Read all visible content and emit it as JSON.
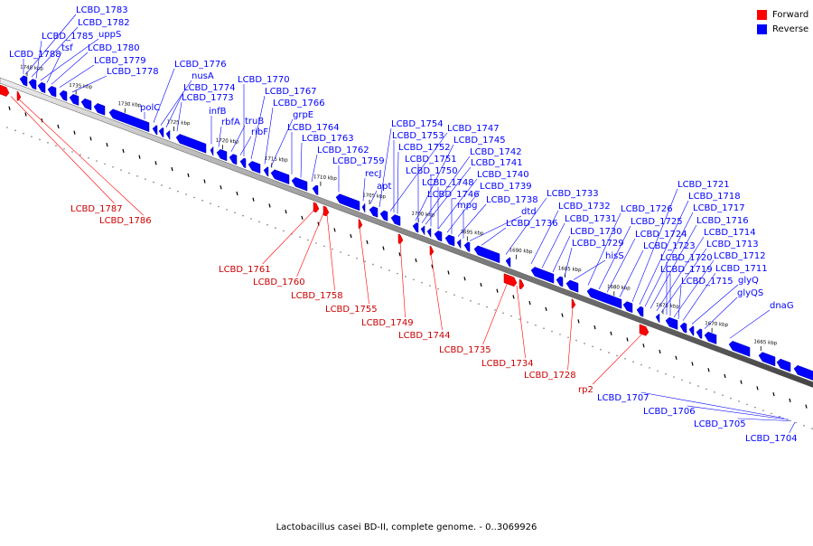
{
  "caption": "Lactobacillus casei BD-II, complete genome. - 0..3069926",
  "colors": {
    "forward": "#ff0000",
    "reverse": "#0000ff",
    "backbone": "#666666"
  },
  "legend": [
    {
      "label": "Forward",
      "color": "#ff0000",
      "icon": "red-square-icon"
    },
    {
      "label": "Reverse",
      "color": "#0000ff",
      "icon": "blue-square-icon"
    }
  ],
  "scale_ticks": [
    {
      "label": "1740 kbp",
      "kbp": 1740
    },
    {
      "label": "1735 kbp",
      "kbp": 1735
    },
    {
      "label": "1730 kbp",
      "kbp": 1730
    },
    {
      "label": "1725 kbp",
      "kbp": 1725
    },
    {
      "label": "1720 kbp",
      "kbp": 1720
    },
    {
      "label": "1715 kbp",
      "kbp": 1715
    },
    {
      "label": "1710 kbp",
      "kbp": 1710
    },
    {
      "label": "1705 kbp",
      "kbp": 1705
    },
    {
      "label": "1700 kbp",
      "kbp": 1700
    },
    {
      "label": "1695 kbp",
      "kbp": 1695
    },
    {
      "label": "1690 kbp",
      "kbp": 1690
    },
    {
      "label": "1685 kbp",
      "kbp": 1685
    },
    {
      "label": "1680 kbp",
      "kbp": 1680
    },
    {
      "label": "1675 kbp",
      "kbp": 1675
    },
    {
      "label": "1670 kbp",
      "kbp": 1670
    },
    {
      "label": "1665 kbp",
      "kbp": 1665
    }
  ],
  "reverse_labels": [
    "LCBD_1783",
    "LCBD_1782",
    "LCBD_1785",
    "uppS",
    "tsf",
    "LCBD_1780",
    "LCBD_1788",
    "LCBD_1779",
    "LCBD_1778",
    "LCBD_1776",
    "nusA",
    "LCBD_1774",
    "LCBD_1773",
    "polC",
    "infB",
    "rbfA",
    "truB",
    "ribF",
    "LCBD_1770",
    "LCBD_1767",
    "LCBD_1766",
    "grpE",
    "LCBD_1764",
    "LCBD_1763",
    "LCBD_1762",
    "LCBD_1759",
    "recJ",
    "apt",
    "LCBD_1754",
    "LCBD_1747",
    "LCBD_1753",
    "LCBD_1745",
    "LCBD_1752",
    "LCBD_1742",
    "LCBD_1751",
    "LCBD_1741",
    "LCBD_1750",
    "LCBD_1740",
    "LCBD_1748",
    "LCBD_1739",
    "LCBD_1746",
    "LCBD_1738",
    "mpg",
    "dtd",
    "LCBD_1736",
    "LCBD_1733",
    "LCBD_1732",
    "LCBD_1731",
    "LCBD_1730",
    "LCBD_1729",
    "hisS",
    "LCBD_1726",
    "LCBD_1725",
    "LCBD_1724",
    "LCBD_1723",
    "LCBD_1721",
    "LCBD_1718",
    "LCBD_1717",
    "LCBD_1716",
    "LCBD_1714",
    "LCBD_1713",
    "LCBD_1720",
    "LCBD_1719",
    "LCBD_1712",
    "LCBD_1715",
    "LCBD_1711",
    "glyQ",
    "glyQS",
    "dnaG"
  ],
  "forward_labels": [
    "LCBD_1787",
    "LCBD_1786",
    "LCBD_1761",
    "LCBD_1760",
    "LCBD_1758",
    "LCBD_1755",
    "LCBD_1749",
    "LCBD_1744",
    "LCBD_1735",
    "LCBD_1734",
    "LCBD_1728",
    "rp2"
  ],
  "minus_strand_labels": [
    "LCBD_1707",
    "LCBD_1706",
    "LCBD_1705",
    "LCBD_1704"
  ]
}
